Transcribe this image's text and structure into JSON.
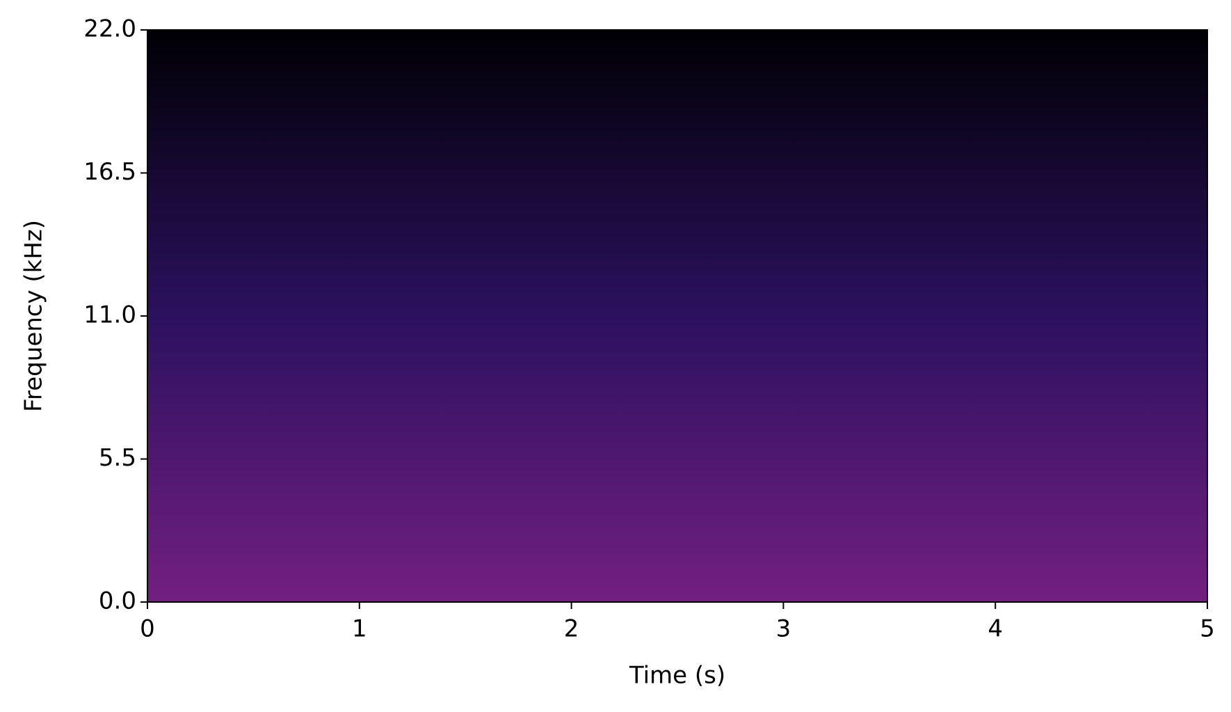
{
  "chart_data": {
    "type": "spectrogram",
    "xlabel": "Time (s)",
    "ylabel": "Frequency (kHz)",
    "xlim": [
      0,
      5
    ],
    "xticks": [
      0,
      1,
      2,
      3,
      4,
      5
    ],
    "ylim": [
      0,
      22
    ],
    "yticks": [
      {
        "value": 0,
        "label": "0.0"
      },
      5.5,
      {
        "value": 11,
        "label": "11.0"
      },
      16.5,
      {
        "value": 22,
        "label": "22.0"
      }
    ],
    "colormap": [
      "#000004",
      "#2c115f",
      "#721f81"
    ]
  }
}
